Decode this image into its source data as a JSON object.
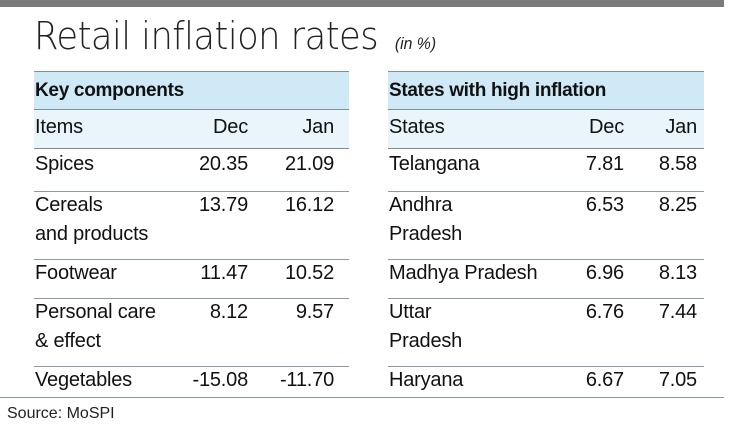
{
  "title": "Retail inflation rates",
  "unit": "(in %)",
  "left_table": {
    "section_title": "Key components",
    "headers": [
      "Items",
      "Dec",
      "Jan"
    ],
    "rows": [
      {
        "label": [
          "Spices"
        ],
        "dec": "20.35",
        "jan": "21.09"
      },
      {
        "label": [
          "Cereals",
          "and products"
        ],
        "dec": "13.79",
        "jan": "16.12"
      },
      {
        "label": [
          "Footwear"
        ],
        "dec": "11.47",
        "jan": "10.52"
      },
      {
        "label": [
          "Personal care",
          "& effect"
        ],
        "dec": "8.12",
        "jan": "9.57"
      },
      {
        "label": [
          "Vegetables"
        ],
        "dec": "-15.08",
        "jan": "-11.70"
      }
    ]
  },
  "right_table": {
    "section_title": "States with high inflation",
    "headers": [
      "States",
      "Dec",
      "Jan"
    ],
    "rows": [
      {
        "label": [
          "Telangana"
        ],
        "dec": "7.81",
        "jan": "8.58"
      },
      {
        "label": [
          "Andhra",
          "Pradesh"
        ],
        "dec": "6.53",
        "jan": "8.25"
      },
      {
        "label": [
          "Madhya Pradesh"
        ],
        "dec": "6.96",
        "jan": "8.13"
      },
      {
        "label": [
          "Uttar",
          "Pradesh"
        ],
        "dec": "6.76",
        "jan": "7.44"
      },
      {
        "label": [
          "Haryana"
        ],
        "dec": "6.67",
        "jan": "7.05"
      }
    ]
  },
  "source": "Source: MoSPI",
  "colors": {
    "band": "#cfe9f6",
    "header_band": "#e9f4fb",
    "top_bar": "#7b7b7b"
  }
}
